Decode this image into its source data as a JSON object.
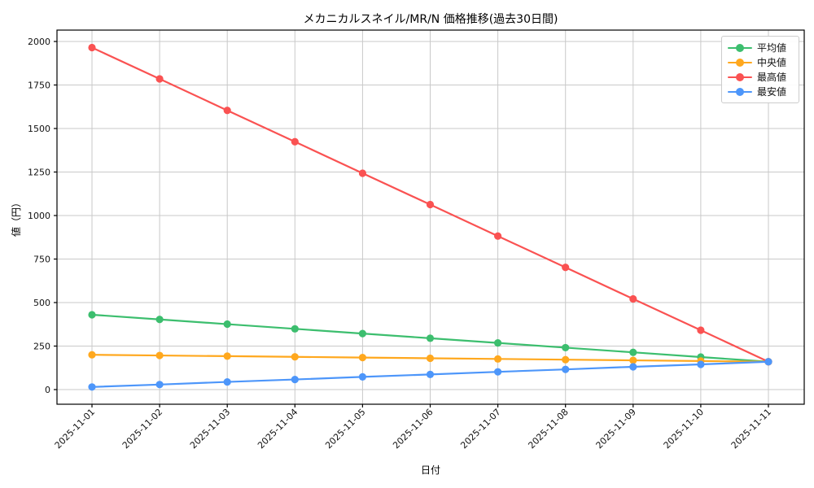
{
  "figure": {
    "background": "#ffffff",
    "grid_color": "#c9c9c9",
    "spine_color": "#000000",
    "tick_color": "#000000"
  },
  "chart_data": {
    "type": "line",
    "title": "メカニカルスネイル/MR/N 価格推移(過去30日間)",
    "xlabel": "日付",
    "ylabel": "値（円）",
    "x": [
      "2025-11-01",
      "2025-11-02",
      "2025-11-03",
      "2025-11-04",
      "2025-11-05",
      "2025-11-06",
      "2025-11-07",
      "2025-11-08",
      "2025-11-09",
      "2025-11-10",
      "2025-11-11"
    ],
    "x_tick_rotation": 45,
    "y_ticks": [
      0,
      250,
      500,
      750,
      1000,
      1250,
      1500,
      1750,
      2000
    ],
    "ylim": [
      -85,
      2065
    ],
    "grid": true,
    "legend_position": "upper right",
    "series": [
      {
        "name": "平均値",
        "key": "average",
        "color": "#3cbe6e",
        "values": [
          430,
          403,
          376,
          349,
          322,
          295,
          268,
          241,
          214,
          187,
          160
        ]
      },
      {
        "name": "中央値",
        "key": "median",
        "color": "#ffa81e",
        "values": [
          200,
          196,
          192,
          188,
          184,
          180,
          176,
          172,
          168,
          164,
          160
        ]
      },
      {
        "name": "最高値",
        "key": "max",
        "color": "#fa5252",
        "values": [
          1965,
          1785,
          1604,
          1424,
          1243,
          1063,
          882,
          702,
          521,
          341,
          160
        ]
      },
      {
        "name": "最安値",
        "key": "min",
        "color": "#4d96fa",
        "values": [
          15,
          29,
          44,
          58,
          73,
          87,
          102,
          116,
          131,
          145,
          160
        ]
      }
    ]
  }
}
